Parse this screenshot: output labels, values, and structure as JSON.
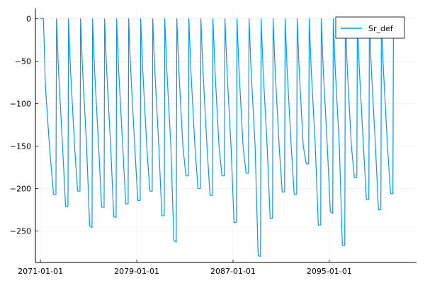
{
  "chart_data": {
    "type": "line",
    "title": "",
    "xlabel": "",
    "ylabel": "",
    "x_axis_type": "date",
    "xlim": [
      "2070-08-01",
      "2102-04-01"
    ],
    "ylim": [
      -287,
      12
    ],
    "xticks": [
      "2071-01-01",
      "2079-01-01",
      "2087-01-01",
      "2095-01-01"
    ],
    "yticks": [
      0,
      -50,
      -100,
      -150,
      -200,
      -250
    ],
    "grid": true,
    "legend_position": "top-right",
    "colors": {
      "series": "#009AFA",
      "axis": "#000000",
      "grid": "#EBEBEB"
    },
    "series": [
      {
        "name": "Sr_def",
        "values": [
          [
            "2071-01-01",
            0
          ],
          [
            "2071-04-01",
            0
          ],
          [
            "2071-06-01",
            -80
          ],
          [
            "2071-10-01",
            -150
          ],
          [
            "2072-02-01",
            -207
          ],
          [
            "2072-04-15",
            -207
          ],
          [
            "2072-05-01",
            0
          ],
          [
            "2072-07-01",
            -60
          ],
          [
            "2072-11-01",
            -150
          ],
          [
            "2073-02-01",
            -221
          ],
          [
            "2073-04-15",
            -221
          ],
          [
            "2073-05-01",
            0
          ],
          [
            "2073-07-01",
            -60
          ],
          [
            "2073-11-01",
            -150
          ],
          [
            "2074-02-01",
            -203
          ],
          [
            "2074-04-15",
            -203
          ],
          [
            "2074-05-01",
            0
          ],
          [
            "2074-07-01",
            -60
          ],
          [
            "2074-11-01",
            -150
          ],
          [
            "2075-02-01",
            -244
          ],
          [
            "2075-04-15",
            -246
          ],
          [
            "2075-05-01",
            0
          ],
          [
            "2075-07-01",
            -60
          ],
          [
            "2075-11-01",
            -150
          ],
          [
            "2076-02-01",
            -222
          ],
          [
            "2076-04-15",
            -222
          ],
          [
            "2076-05-01",
            0
          ],
          [
            "2076-07-01",
            -60
          ],
          [
            "2076-11-01",
            -150
          ],
          [
            "2077-02-01",
            -233
          ],
          [
            "2077-04-15",
            -234
          ],
          [
            "2077-05-01",
            0
          ],
          [
            "2077-07-01",
            -60
          ],
          [
            "2077-11-01",
            -150
          ],
          [
            "2078-02-01",
            -218
          ],
          [
            "2078-04-15",
            -218
          ],
          [
            "2078-05-01",
            0
          ],
          [
            "2078-07-01",
            -60
          ],
          [
            "2078-11-01",
            -150
          ],
          [
            "2079-02-01",
            -214
          ],
          [
            "2079-04-15",
            -214
          ],
          [
            "2079-05-01",
            0
          ],
          [
            "2079-07-01",
            -60
          ],
          [
            "2079-11-01",
            -150
          ],
          [
            "2080-02-01",
            -203
          ],
          [
            "2080-04-15",
            -203
          ],
          [
            "2080-05-01",
            0
          ],
          [
            "2080-07-01",
            -60
          ],
          [
            "2080-11-01",
            -150
          ],
          [
            "2081-02-01",
            -232
          ],
          [
            "2081-04-15",
            -232
          ],
          [
            "2081-05-01",
            0
          ],
          [
            "2081-07-01",
            -60
          ],
          [
            "2081-11-01",
            -150
          ],
          [
            "2082-02-01",
            -261
          ],
          [
            "2082-04-15",
            -263
          ],
          [
            "2082-05-01",
            0
          ],
          [
            "2082-07-01",
            -60
          ],
          [
            "2082-11-01",
            -150
          ],
          [
            "2083-02-01",
            -185
          ],
          [
            "2083-04-15",
            -185
          ],
          [
            "2083-05-01",
            0
          ],
          [
            "2083-07-01",
            -60
          ],
          [
            "2083-11-01",
            -150
          ],
          [
            "2084-02-01",
            -200
          ],
          [
            "2084-04-15",
            -200
          ],
          [
            "2084-05-01",
            0
          ],
          [
            "2084-07-01",
            -60
          ],
          [
            "2084-11-01",
            -150
          ],
          [
            "2085-02-01",
            -208
          ],
          [
            "2085-04-15",
            -208
          ],
          [
            "2085-05-01",
            0
          ],
          [
            "2085-07-01",
            -60
          ],
          [
            "2085-11-01",
            -150
          ],
          [
            "2086-02-01",
            -185
          ],
          [
            "2086-04-15",
            -185
          ],
          [
            "2086-05-01",
            0
          ],
          [
            "2086-07-01",
            -60
          ],
          [
            "2086-11-01",
            -150
          ],
          [
            "2087-02-01",
            -240
          ],
          [
            "2087-04-15",
            -240
          ],
          [
            "2087-05-01",
            0
          ],
          [
            "2087-07-01",
            -60
          ],
          [
            "2087-11-01",
            -150
          ],
          [
            "2088-02-01",
            -182
          ],
          [
            "2088-04-15",
            -182
          ],
          [
            "2088-05-01",
            0
          ],
          [
            "2088-07-01",
            -60
          ],
          [
            "2088-11-01",
            -150
          ],
          [
            "2089-02-01",
            -279
          ],
          [
            "2089-04-15",
            -280
          ],
          [
            "2089-05-01",
            0
          ],
          [
            "2089-07-01",
            -60
          ],
          [
            "2089-11-01",
            -150
          ],
          [
            "2090-02-01",
            -235
          ],
          [
            "2090-04-15",
            -235
          ],
          [
            "2090-05-01",
            0
          ],
          [
            "2090-07-01",
            -60
          ],
          [
            "2090-11-01",
            -150
          ],
          [
            "2091-02-01",
            -204
          ],
          [
            "2091-04-15",
            -204
          ],
          [
            "2091-05-01",
            0
          ],
          [
            "2091-07-01",
            -60
          ],
          [
            "2091-11-01",
            -150
          ],
          [
            "2092-02-01",
            -207
          ],
          [
            "2092-04-15",
            -207
          ],
          [
            "2092-05-01",
            0
          ],
          [
            "2092-07-01",
            -60
          ],
          [
            "2092-11-01",
            -150
          ],
          [
            "2093-02-01",
            -171
          ],
          [
            "2093-04-15",
            -171
          ],
          [
            "2093-05-01",
            0
          ],
          [
            "2093-07-01",
            -60
          ],
          [
            "2093-11-01",
            -150
          ],
          [
            "2094-02-01",
            -243
          ],
          [
            "2094-04-15",
            -243
          ],
          [
            "2094-05-01",
            0
          ],
          [
            "2094-07-01",
            -60
          ],
          [
            "2094-11-01",
            -150
          ],
          [
            "2095-02-01",
            -227
          ],
          [
            "2095-04-15",
            -229
          ],
          [
            "2095-05-01",
            0
          ],
          [
            "2095-07-01",
            -60
          ],
          [
            "2095-11-01",
            -150
          ],
          [
            "2096-02-01",
            -267
          ],
          [
            "2096-04-15",
            -267
          ],
          [
            "2096-05-01",
            0
          ],
          [
            "2096-07-01",
            -60
          ],
          [
            "2096-11-01",
            -150
          ],
          [
            "2097-02-01",
            -187
          ],
          [
            "2097-04-15",
            -187
          ],
          [
            "2097-05-01",
            0
          ],
          [
            "2097-07-01",
            -60
          ],
          [
            "2097-11-01",
            -150
          ],
          [
            "2098-02-01",
            -213
          ],
          [
            "2098-04-15",
            -213
          ],
          [
            "2098-05-01",
            0
          ],
          [
            "2098-07-01",
            -60
          ],
          [
            "2098-11-01",
            -150
          ],
          [
            "2099-02-01",
            -225
          ],
          [
            "2099-04-15",
            -225
          ],
          [
            "2099-05-01",
            0
          ],
          [
            "2099-07-01",
            -60
          ],
          [
            "2099-11-01",
            -150
          ],
          [
            "2100-02-01",
            -206
          ],
          [
            "2100-04-15",
            -206
          ],
          [
            "2100-05-01",
            0
          ]
        ]
      }
    ]
  }
}
